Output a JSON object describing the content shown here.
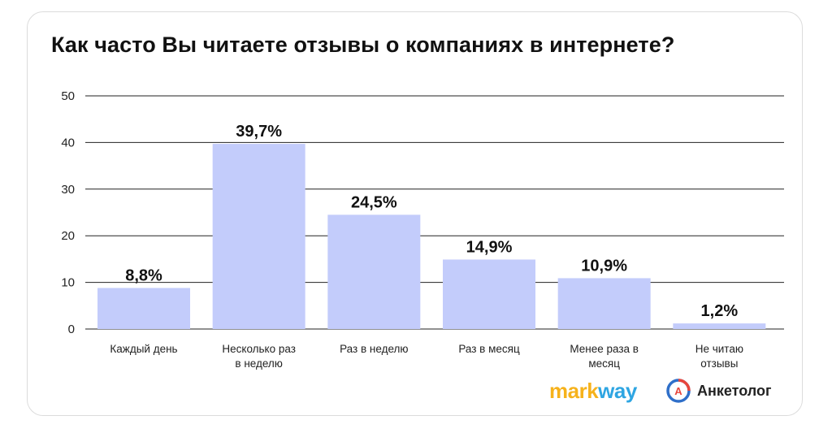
{
  "title": "Как часто Вы читаете отзывы о компаниях в интернете?",
  "chart_data": {
    "type": "bar",
    "title": "Как часто Вы читаете отзывы о компаниях в интернете?",
    "categories": [
      [
        "Каждый день"
      ],
      [
        "Несколько раз",
        "в неделю"
      ],
      [
        "Раз в неделю"
      ],
      [
        "Раз в месяц"
      ],
      [
        "Менее раза в",
        "месяц"
      ],
      [
        "Не читаю",
        "отзывы"
      ]
    ],
    "values": [
      8.8,
      39.7,
      24.5,
      14.9,
      10.9,
      1.2
    ],
    "data_labels": [
      "8,8%",
      "39,7%",
      "24,5%",
      "14,9%",
      "10,9%",
      "1,2%"
    ],
    "yticks": [
      0,
      10,
      20,
      30,
      40,
      50
    ],
    "ylim": [
      0,
      50
    ],
    "grid": true,
    "bar_color": "#c3ccfb"
  },
  "logos": {
    "markway_part1": "mark",
    "markway_part2": "way",
    "markway_color1": "#f6b21b",
    "markway_color2": "#2ea5e2",
    "anketolog_text": "Анкетолог",
    "anketolog_badge": "A"
  }
}
